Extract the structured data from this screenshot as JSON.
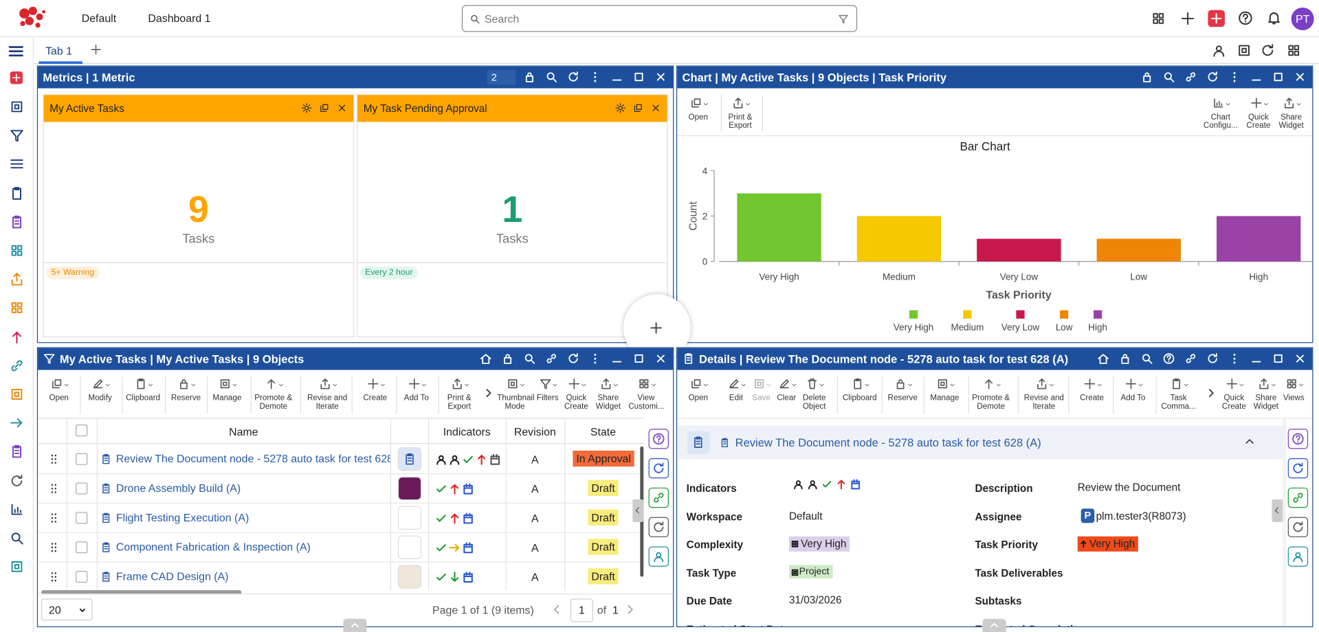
{
  "header": {
    "tabs": [
      "Default",
      "Dashboard 1"
    ],
    "search_placeholder": "Search",
    "avatar": "PT"
  },
  "tabbar": {
    "tab": "Tab 1"
  },
  "metrics": {
    "title": "Metrics | 1 Metric",
    "page": "2",
    "cards": [
      {
        "title": "My Active Tasks",
        "value": "9",
        "unit": "Tasks",
        "badge": "5+ Warning"
      },
      {
        "title": "My Task Pending Approval",
        "value": "1",
        "unit": "Tasks",
        "badge": "Every 2 hour"
      }
    ]
  },
  "chart_widget": {
    "title": "Chart | My Active Tasks | 9 Objects | Task Priority",
    "toolbar_left": [
      "Open",
      "Print & Export"
    ],
    "toolbar_right": [
      "Chart Configu...",
      "Quick Create",
      "Share Widget"
    ],
    "chart": {
      "type": "bar",
      "title": "Bar Chart",
      "x_label": "Task Priority",
      "y_label": "Count",
      "categories": [
        "Very High",
        "Medium",
        "Very Low",
        "Low",
        "High"
      ],
      "values": [
        3,
        2,
        1,
        1,
        2
      ],
      "colors": [
        "#72c72f",
        "#f5c800",
        "#c8174a",
        "#ee8505",
        "#9b42a6"
      ],
      "ylim": [
        0,
        4
      ],
      "yticks": [
        0,
        2,
        4
      ]
    }
  },
  "tasks": {
    "title": "My Active Tasks | My Active Tasks | 9 Objects",
    "toolbar": [
      "Open",
      "Modify",
      "Clipboard",
      "Reserve",
      "Manage",
      "Promote & Demote",
      "Revise and Iterate",
      "Create",
      "Add To",
      "Print & Export",
      "Thumbnail Mode",
      "Filters",
      "Quick Create",
      "Share Widget",
      "View Customi..."
    ],
    "columns": [
      "Name",
      "Indicators",
      "Revision",
      "State"
    ],
    "rows": [
      {
        "name": "Review The Document node - 5278 auto task for test 628",
        "revision": "A",
        "state": "In Approval"
      },
      {
        "name": "Drone Assembly Build (A)",
        "revision": "A",
        "state": "Draft"
      },
      {
        "name": "Flight Testing Execution (A)",
        "revision": "A",
        "state": "Draft"
      },
      {
        "name": "Component Fabrication & Inspection (A)",
        "revision": "A",
        "state": "Draft"
      },
      {
        "name": "Frame CAD Design (A)",
        "revision": "A",
        "state": "Draft"
      }
    ],
    "page_size": "20",
    "pagination": "Page 1 of 1 (9 items)",
    "page": "1",
    "of": "of",
    "total": "1"
  },
  "details": {
    "title": "Details | Review The Document node - 5278 auto task for test 628 (A)",
    "toolbar": [
      "Open",
      "Edit",
      "Save",
      "Clear",
      "Delete Object",
      "Clipboard",
      "Reserve",
      "Manage",
      "Promote & Demote",
      "Revise and Iterate",
      "Create",
      "Add To",
      "Task Comma...",
      "Quick Create",
      "Share Widget",
      "Views"
    ],
    "object": "Review The Document node - 5278 auto task for test 628 (A)",
    "fields": [
      {
        "label": "Indicators"
      },
      {
        "label": "Description",
        "value": "Review the Document"
      },
      {
        "label": "Workspace",
        "value": "Default"
      },
      {
        "label": "Assignee",
        "initial": "P",
        "value": "plm.tester3(R8073)"
      },
      {
        "label": "Complexity",
        "value": "Very High"
      },
      {
        "label": "Task Priority",
        "value": "Very High"
      },
      {
        "label": "Task Type",
        "value": "Project"
      },
      {
        "label": "Task Deliverables"
      },
      {
        "label": "Due Date",
        "value": "31/03/2026"
      },
      {
        "label": "Subtasks"
      },
      {
        "label": "Estimated Start Date"
      },
      {
        "label": "Estimated Completi..."
      }
    ]
  }
}
